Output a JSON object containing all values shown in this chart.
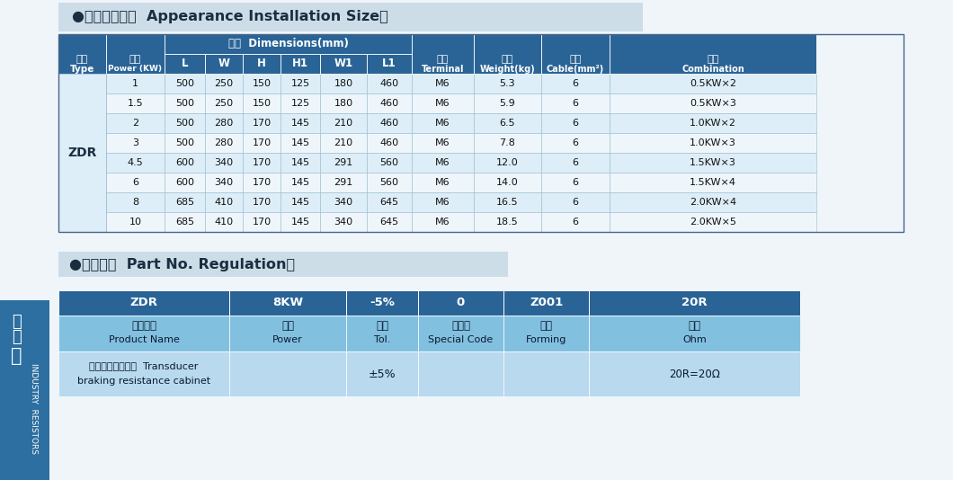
{
  "bg_color": "#f0f5fa",
  "header_section_bg": "#ccdde8",
  "title1": "●外形安装尺寸  Appearance Installation Size：",
  "title2": "●料号规则  Part No. Regulation：",
  "table1_rows": [
    [
      "1",
      "500",
      "250",
      "150",
      "125",
      "180",
      "460",
      "M6",
      "5.3",
      "6",
      "0.5KW×2"
    ],
    [
      "1.5",
      "500",
      "250",
      "150",
      "125",
      "180",
      "460",
      "M6",
      "5.9",
      "6",
      "0.5KW×3"
    ],
    [
      "2",
      "500",
      "280",
      "170",
      "145",
      "210",
      "460",
      "M6",
      "6.5",
      "6",
      "1.0KW×2"
    ],
    [
      "3",
      "500",
      "280",
      "170",
      "145",
      "210",
      "460",
      "M6",
      "7.8",
      "6",
      "1.0KW×3"
    ],
    [
      "4.5",
      "600",
      "340",
      "170",
      "145",
      "291",
      "560",
      "M6",
      "12.0",
      "6",
      "1.5KW×3"
    ],
    [
      "6",
      "600",
      "340",
      "170",
      "145",
      "291",
      "560",
      "M6",
      "14.0",
      "6",
      "1.5KW×4"
    ],
    [
      "8",
      "685",
      "410",
      "170",
      "145",
      "340",
      "645",
      "M6",
      "16.5",
      "6",
      "2.0KW×4"
    ],
    [
      "10",
      "685",
      "410",
      "170",
      "145",
      "340",
      "645",
      "M6",
      "18.5",
      "6",
      "2.0KW×5"
    ]
  ],
  "t2_top": [
    "ZDR",
    "8KW",
    "-5%",
    "0",
    "Z001",
    "20R"
  ],
  "t2_mid_cn": [
    "产品名称",
    "功率",
    "精度",
    "特殊码",
    "成型",
    "阻値"
  ],
  "t2_mid_en": [
    "Product Name",
    "Power",
    "Tol.",
    "Special Code",
    "Forming",
    "Ohm"
  ],
  "t2_bot_col0_l1": "变频器制动电阴笱  Transducer",
  "t2_bot_col0_l2": "braking resistance cabinet",
  "t2_bot_col2": "±5%",
  "t2_bot_col5": "20R=20Ω",
  "dark_blue_sidebar": "#2c6fa0",
  "table_header_dark": "#2a6496",
  "table_row_light": "#ddeef8",
  "table_row_white": "#eef6fc",
  "t2_top_blue": "#2a6496",
  "t2_mid_blue": "#82c0e0",
  "t2_bot_blue": "#b8d9ee"
}
